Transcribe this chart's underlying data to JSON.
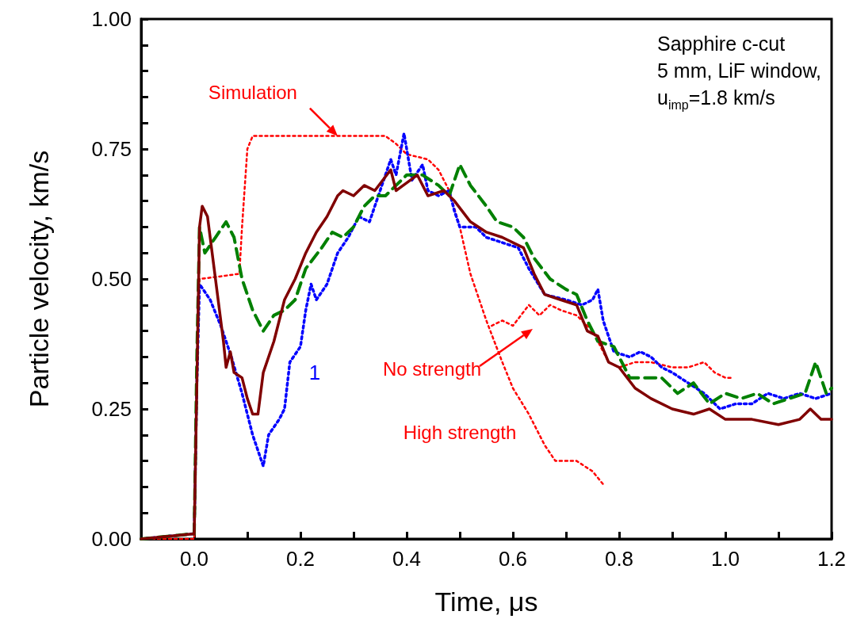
{
  "chart_data": {
    "type": "line",
    "xlabel": "Time, μs",
    "ylabel": "Particle velocity, km/s",
    "xlim": [
      -0.1,
      1.2
    ],
    "xticks": [
      {
        "value": -0.1,
        "label": null
      },
      {
        "value": 0,
        "label": "0.0"
      },
      {
        "value": 0.1,
        "label": null
      },
      {
        "value": 0.2,
        "label": "0.2"
      },
      {
        "value": 0.3,
        "label": null
      },
      {
        "value": 0.4,
        "label": "0.4"
      },
      {
        "value": 0.5,
        "label": null
      },
      {
        "value": 0.6,
        "label": "0.6"
      },
      {
        "value": 0.7,
        "label": null
      },
      {
        "value": 0.8,
        "label": "0.8"
      },
      {
        "value": 0.9,
        "label": null
      },
      {
        "value": 1,
        "label": "1.0"
      },
      {
        "value": 1.1,
        "label": null
      },
      {
        "value": 1.2,
        "label": "1.2"
      }
    ],
    "ylim": [
      0,
      1
    ],
    "yticks": [
      {
        "value": 0,
        "label": "0.00"
      },
      {
        "value": 0.05,
        "label": null
      },
      {
        "value": 0.1,
        "label": null
      },
      {
        "value": 0.15,
        "label": null
      },
      {
        "value": 0.2,
        "label": null
      },
      {
        "value": 0.25,
        "label": "0.25"
      },
      {
        "value": 0.3,
        "label": null
      },
      {
        "value": 0.35,
        "label": null
      },
      {
        "value": 0.4,
        "label": null
      },
      {
        "value": 0.45,
        "label": null
      },
      {
        "value": 0.5,
        "label": "0.50"
      },
      {
        "value": 0.55,
        "label": null
      },
      {
        "value": 0.6,
        "label": null
      },
      {
        "value": 0.65,
        "label": null
      },
      {
        "value": 0.7,
        "label": null
      },
      {
        "value": 0.75,
        "label": "0.75"
      },
      {
        "value": 0.8,
        "label": null
      },
      {
        "value": 0.85,
        "label": null
      },
      {
        "value": 0.9,
        "label": null
      },
      {
        "value": 0.95,
        "label": null
      },
      {
        "value": 1,
        "label": "1.00"
      }
    ],
    "grid": false,
    "legend": false,
    "marker": "none",
    "annotations": [
      "Sapphire c-cut",
      "5 mm, LiF window,",
      "u$_{imp}$=1.8 km/s",
      {
        "text": "Simulation",
        "x": 0.27,
        "y": 0.775
      },
      "No strength",
      "High strength"
    ],
    "series": [
      {
        "color": "#800000",
        "line_style": "solid",
        "x": [
          -0.1,
          0,
          0.005,
          0.01,
          0.015,
          0.025,
          0.04,
          0.055,
          0.06,
          0.068,
          0.075,
          0.09,
          0.1,
          0.11,
          0.12,
          0.13,
          0.15,
          0.17,
          0.19,
          0.21,
          0.23,
          0.25,
          0.27,
          0.28,
          0.3,
          0.32,
          0.34,
          0.37,
          0.38,
          0.42,
          0.44,
          0.47,
          0.49,
          0.52,
          0.55,
          0.58,
          0.62,
          0.64,
          0.66,
          0.69,
          0.72,
          0.74,
          0.76,
          0.78,
          0.8,
          0.83,
          0.86,
          0.9,
          0.94,
          0.97,
          1,
          1.05,
          1.1,
          1.14,
          1.16,
          1.18,
          1.2
        ],
        "values": [
          0,
          0.01,
          0.3,
          0.6,
          0.64,
          0.62,
          0.5,
          0.38,
          0.33,
          0.36,
          0.32,
          0.31,
          0.27,
          0.24,
          0.24,
          0.32,
          0.38,
          0.46,
          0.5,
          0.55,
          0.59,
          0.62,
          0.66,
          0.67,
          0.66,
          0.68,
          0.67,
          0.71,
          0.67,
          0.7,
          0.66,
          0.67,
          0.65,
          0.61,
          0.59,
          0.58,
          0.56,
          0.51,
          0.47,
          0.46,
          0.45,
          0.4,
          0.39,
          0.34,
          0.33,
          0.29,
          0.27,
          0.25,
          0.24,
          0.25,
          0.23,
          0.23,
          0.22,
          0.23,
          0.25,
          0.23,
          0.23
        ]
      },
      {
        "color": "#008000",
        "line_style": "dashed",
        "x": [
          -0.1,
          0,
          0.005,
          0.01,
          0.02,
          0.04,
          0.06,
          0.075,
          0.09,
          0.11,
          0.13,
          0.15,
          0.17,
          0.19,
          0.21,
          0.24,
          0.26,
          0.28,
          0.3,
          0.32,
          0.34,
          0.36,
          0.38,
          0.4,
          0.43,
          0.46,
          0.48,
          0.5,
          0.52,
          0.55,
          0.57,
          0.6,
          0.62,
          0.64,
          0.67,
          0.7,
          0.72,
          0.74,
          0.76,
          0.79,
          0.82,
          0.85,
          0.88,
          0.91,
          0.94,
          0.97,
          1,
          1.03,
          1.06,
          1.09,
          1.12,
          1.15,
          1.17,
          1.19,
          1.2
        ],
        "values": [
          0,
          0.01,
          0.35,
          0.6,
          0.55,
          0.58,
          0.61,
          0.58,
          0.5,
          0.44,
          0.4,
          0.43,
          0.44,
          0.46,
          0.52,
          0.56,
          0.59,
          0.58,
          0.6,
          0.64,
          0.66,
          0.66,
          0.68,
          0.7,
          0.7,
          0.68,
          0.66,
          0.72,
          0.68,
          0.64,
          0.61,
          0.6,
          0.58,
          0.54,
          0.5,
          0.48,
          0.47,
          0.42,
          0.38,
          0.37,
          0.31,
          0.31,
          0.31,
          0.28,
          0.3,
          0.26,
          0.28,
          0.27,
          0.28,
          0.26,
          0.27,
          0.28,
          0.34,
          0.28,
          0.29
        ]
      },
      {
        "name": "1",
        "color": "#0000ff",
        "line_style": "dotted",
        "x": [
          -0.1,
          0,
          0.005,
          0.01,
          0.03,
          0.05,
          0.07,
          0.09,
          0.1,
          0.11,
          0.12,
          0.13,
          0.14,
          0.16,
          0.17,
          0.18,
          0.2,
          0.21,
          0.22,
          0.23,
          0.25,
          0.27,
          0.29,
          0.31,
          0.33,
          0.35,
          0.37,
          0.38,
          0.395,
          0.41,
          0.43,
          0.44,
          0.46,
          0.48,
          0.49,
          0.5,
          0.53,
          0.55,
          0.58,
          0.61,
          0.63,
          0.66,
          0.7,
          0.73,
          0.75,
          0.76,
          0.77,
          0.79,
          0.82,
          0.84,
          0.86,
          0.88,
          0.9,
          0.93,
          0.96,
          0.99,
          1.02,
          1.05,
          1.08,
          1.11,
          1.14,
          1.17,
          1.2
        ],
        "values": [
          0,
          0.01,
          0.3,
          0.49,
          0.46,
          0.41,
          0.35,
          0.28,
          0.24,
          0.2,
          0.17,
          0.14,
          0.2,
          0.23,
          0.25,
          0.34,
          0.37,
          0.44,
          0.49,
          0.46,
          0.49,
          0.55,
          0.58,
          0.62,
          0.61,
          0.67,
          0.73,
          0.7,
          0.78,
          0.69,
          0.72,
          0.67,
          0.66,
          0.67,
          0.63,
          0.6,
          0.6,
          0.58,
          0.57,
          0.56,
          0.52,
          0.47,
          0.46,
          0.45,
          0.46,
          0.48,
          0.42,
          0.36,
          0.35,
          0.36,
          0.35,
          0.33,
          0.32,
          0.3,
          0.28,
          0.25,
          0.26,
          0.26,
          0.28,
          0.27,
          0.28,
          0.27,
          0.28
        ]
      },
      {
        "color": "#ff0000",
        "line_style": "dotted",
        "x": [
          -0.1,
          0,
          0.005,
          0.01,
          0.05,
          0.085,
          0.09,
          0.1,
          0.11,
          0.36,
          0.38,
          0.4,
          0.44,
          0.46,
          0.48,
          0.5,
          0.52,
          0.55,
          0.58,
          0.6,
          0.63,
          0.66,
          0.68,
          0.72,
          0.75,
          0.77
        ],
        "values": [
          0,
          0,
          0.3,
          0.5,
          0.505,
          0.51,
          0.6,
          0.75,
          0.775,
          0.775,
          0.76,
          0.74,
          0.73,
          0.71,
          0.67,
          0.6,
          0.51,
          0.42,
          0.34,
          0.29,
          0.24,
          0.18,
          0.15,
          0.15,
          0.13,
          0.105
        ]
      },
      {
        "color": "#ff0000",
        "line_style": "dotted",
        "x": [
          0.56,
          0.58,
          0.6,
          0.63,
          0.65,
          0.67,
          0.69,
          0.72,
          0.75,
          0.77,
          0.78,
          0.8,
          0.83,
          0.86,
          0.9,
          0.93,
          0.96,
          0.98,
          1,
          1.01
        ],
        "values": [
          0.41,
          0.42,
          0.41,
          0.45,
          0.43,
          0.45,
          0.44,
          0.43,
          0.4,
          0.36,
          0.34,
          0.33,
          0.34,
          0.34,
          0.33,
          0.33,
          0.34,
          0.32,
          0.31,
          0.31
        ]
      }
    ]
  }
}
